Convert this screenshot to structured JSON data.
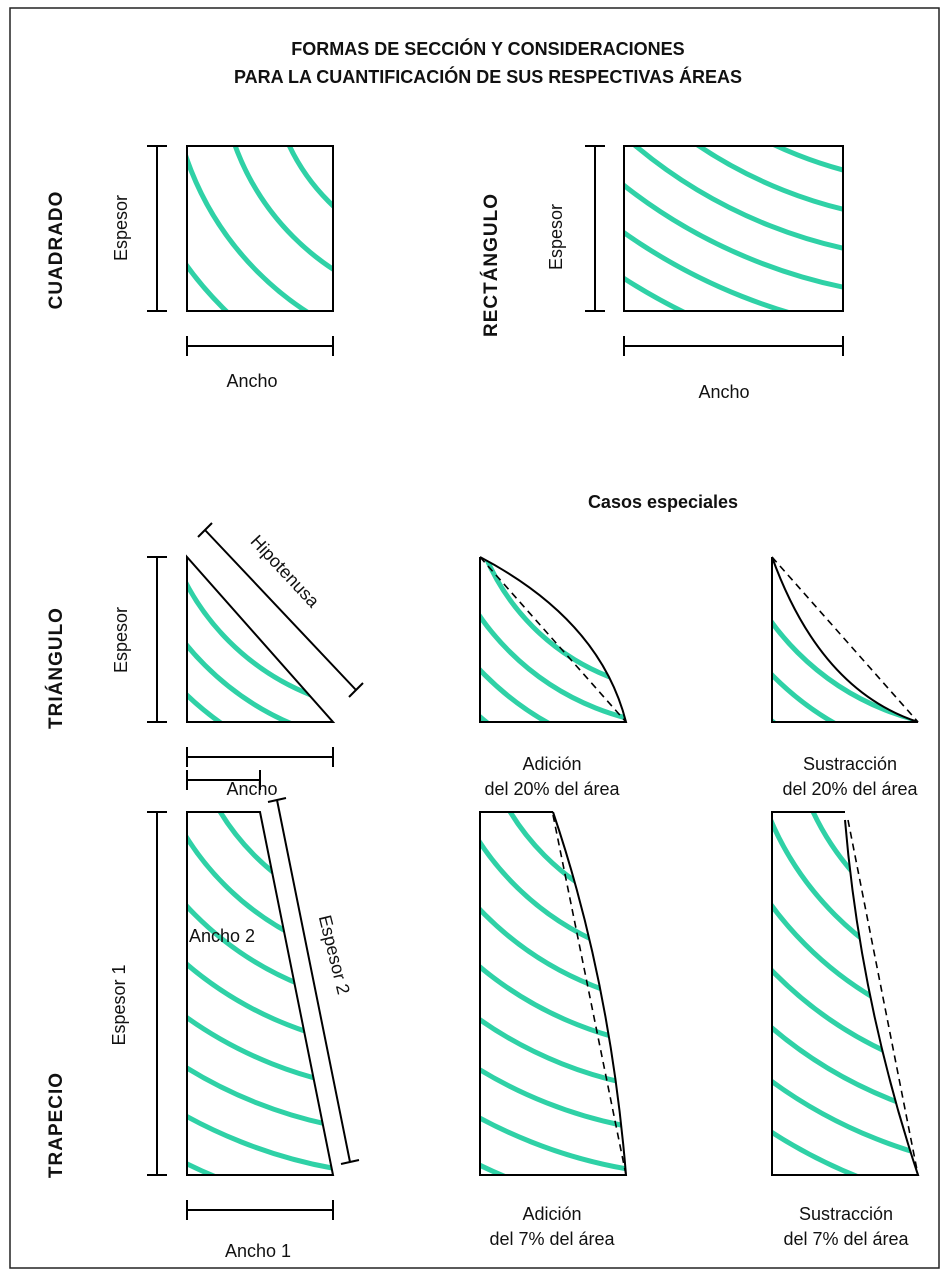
{
  "title": [
    "FORMAS DE SECCIÓN Y CONSIDERACIONES",
    "PARA LA CUANTIFICACIÓN DE SUS RESPECTIVAS ÁREAS"
  ],
  "square": {
    "label": "CUADRADO",
    "height": "Espesor",
    "width": "Ancho"
  },
  "rectangle": {
    "label": "RECTÁNGULO",
    "height": "Espesor",
    "width": "Ancho"
  },
  "special_cases": "Casos especiales",
  "triangle": {
    "label": "TRIÁNGULO",
    "height": "Espesor",
    "width": "Ancho",
    "hypotenuse": "Hipotenusa",
    "addition": [
      "Adición",
      "del 20% del área"
    ],
    "subtraction": [
      "Sustracción",
      "del 20% del área"
    ]
  },
  "trapezoid": {
    "label": "TRAPECIO",
    "height1": "Espesor 1",
    "height2": "Espesor 2",
    "width1": "Ancho 1",
    "width2": "Ancho 2",
    "addition": [
      "Adición",
      "del 7% del área"
    ],
    "subtraction": [
      "Sustracción",
      "del 7% del área"
    ]
  }
}
